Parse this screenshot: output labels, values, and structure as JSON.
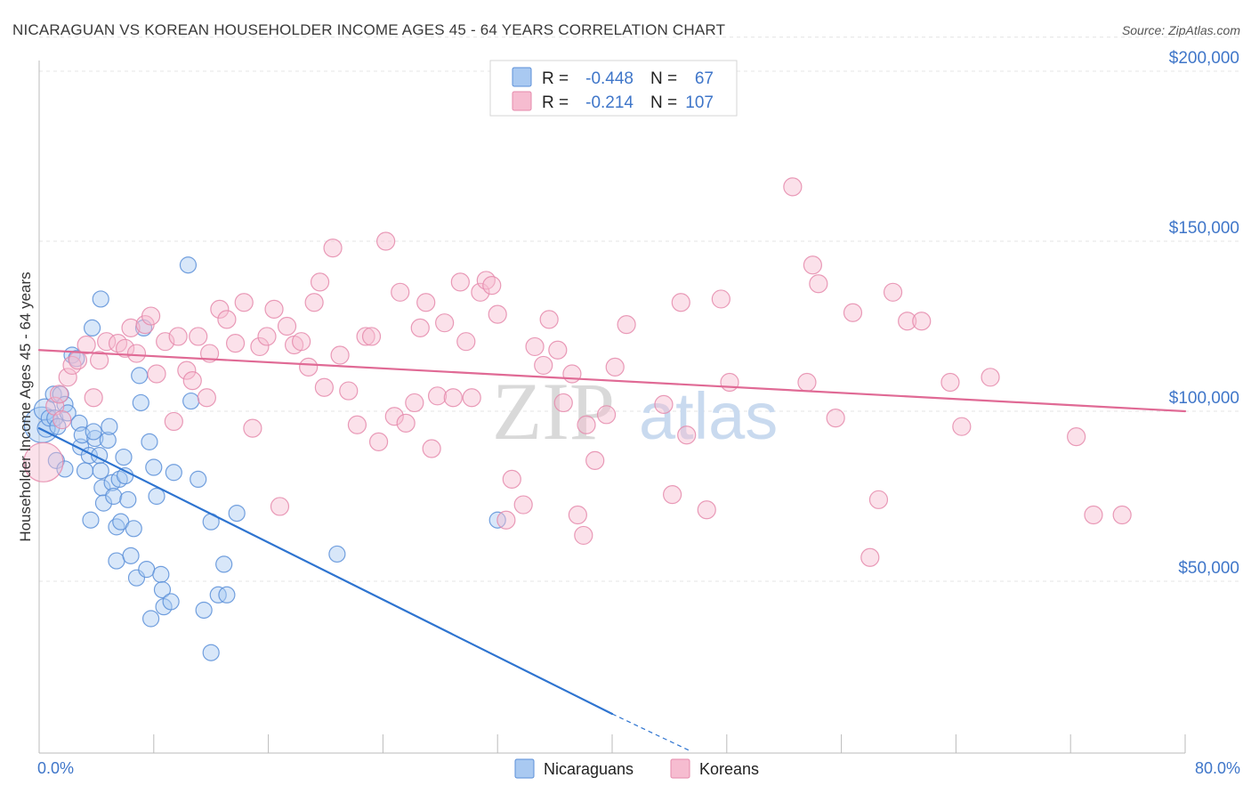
{
  "chart_data": {
    "type": "scatter",
    "title": "NICARAGUAN VS KOREAN HOUSEHOLDER INCOME AGES 45 - 64 YEARS CORRELATION CHART",
    "source": "Source: ZipAtlas.com",
    "xlabel": "",
    "ylabel": "Householder Income Ages 45 - 64 years",
    "xlim": [
      0,
      80
    ],
    "ylim": [
      0,
      210000
    ],
    "x_tick_labels": [
      "0.0%",
      "80.0%"
    ],
    "y_ticks": [
      50000,
      100000,
      150000,
      200000
    ],
    "y_tick_labels": [
      "$50,000",
      "$100,000",
      "$150,000",
      "$200,000"
    ],
    "grid": true,
    "watermark": {
      "zip": "ZIP",
      "atlas": "atlas"
    },
    "colors": {
      "Nicaraguans": {
        "fill": "#a9c9f1",
        "stroke": "#5b8fd8",
        "line": "#2e74d0"
      },
      "Koreans": {
        "fill": "#f6bcd0",
        "stroke": "#e58aab",
        "line": "#e06a95"
      }
    },
    "stats_legend": [
      {
        "series": "Nicaraguans",
        "r_label": "R =",
        "r_value": "-0.448",
        "n_label": "N =",
        "n_value": "67"
      },
      {
        "series": "Koreans",
        "r_label": "R =",
        "r_value": "-0.214",
        "n_label": "N =",
        "n_value": "107"
      }
    ],
    "series": [
      {
        "name": "Nicaraguans",
        "trend": {
          "x0": 0,
          "y0": 95000,
          "x1": 40,
          "y1": 11000,
          "dash_to_x": 45.5,
          "dash_to_y": 0
        },
        "points": [
          [
            0.2,
            96000,
            20
          ],
          [
            0.4,
            100500,
            12
          ],
          [
            0.5,
            95000,
            10
          ],
          [
            0.7,
            98000,
            9
          ],
          [
            1.0,
            105000,
            9
          ],
          [
            1.1,
            98000,
            9
          ],
          [
            1.3,
            95500,
            9
          ],
          [
            1.5,
            105000,
            9
          ],
          [
            1.8,
            102000,
            9
          ],
          [
            2.0,
            99500,
            9
          ],
          [
            1.2,
            85500,
            9
          ],
          [
            1.8,
            83000,
            9
          ],
          [
            2.3,
            116500,
            9
          ],
          [
            2.6,
            115500,
            9
          ],
          [
            2.8,
            96500,
            9
          ],
          [
            2.9,
            89500,
            9
          ],
          [
            3.0,
            93000,
            9
          ],
          [
            3.2,
            82500,
            9
          ],
          [
            3.5,
            87000,
            9
          ],
          [
            3.6,
            68000,
            9
          ],
          [
            3.7,
            124500,
            9
          ],
          [
            3.9,
            92000,
            9
          ],
          [
            4.2,
            87000,
            9
          ],
          [
            4.3,
            82500,
            9
          ],
          [
            4.4,
            77500,
            9
          ],
          [
            4.5,
            73000,
            9
          ],
          [
            4.3,
            133000,
            9
          ],
          [
            4.8,
            91500,
            9
          ],
          [
            4.9,
            95500,
            9
          ],
          [
            5.1,
            79000,
            9
          ],
          [
            5.2,
            75000,
            9
          ],
          [
            5.4,
            66000,
            9
          ],
          [
            5.4,
            56000,
            9
          ],
          [
            5.6,
            80000,
            9
          ],
          [
            5.7,
            67500,
            9
          ],
          [
            5.9,
            86500,
            9
          ],
          [
            6.0,
            81000,
            9
          ],
          [
            6.2,
            74000,
            9
          ],
          [
            6.4,
            57500,
            9
          ],
          [
            6.6,
            65500,
            9
          ],
          [
            6.8,
            51000,
            9
          ],
          [
            7.0,
            110500,
            9
          ],
          [
            7.1,
            102500,
            9
          ],
          [
            7.3,
            124500,
            9
          ],
          [
            7.5,
            53500,
            9
          ],
          [
            7.7,
            91000,
            9
          ],
          [
            7.8,
            39000,
            9
          ],
          [
            8.0,
            83500,
            9
          ],
          [
            8.2,
            75000,
            9
          ],
          [
            8.5,
            52000,
            9
          ],
          [
            8.6,
            47500,
            9
          ],
          [
            8.7,
            42500,
            9
          ],
          [
            9.2,
            44000,
            9
          ],
          [
            9.4,
            82000,
            9
          ],
          [
            10.4,
            143000,
            9
          ],
          [
            10.6,
            103000,
            9
          ],
          [
            11.1,
            80000,
            9
          ],
          [
            11.5,
            41500,
            9
          ],
          [
            12.0,
            67500,
            9
          ],
          [
            12.0,
            29000,
            9
          ],
          [
            12.5,
            46000,
            9
          ],
          [
            12.9,
            55000,
            9
          ],
          [
            13.1,
            46000,
            9
          ],
          [
            13.8,
            70000,
            9
          ],
          [
            20.8,
            58000,
            9
          ],
          [
            32.0,
            68000,
            9
          ],
          [
            3.8,
            94000,
            9
          ]
        ]
      },
      {
        "name": "Koreans",
        "trend": {
          "x0": 0,
          "y0": 118000,
          "x1": 80,
          "y1": 100000
        },
        "points": [
          [
            0.3,
            85000,
            22
          ],
          [
            1.1,
            101500,
            10
          ],
          [
            1.4,
            105000,
            10
          ],
          [
            1.6,
            97500,
            10
          ],
          [
            2.0,
            110000,
            10
          ],
          [
            2.3,
            113500,
            10
          ],
          [
            2.7,
            115000,
            10
          ],
          [
            3.3,
            119500,
            10
          ],
          [
            3.8,
            104000,
            10
          ],
          [
            4.2,
            115000,
            10
          ],
          [
            4.7,
            120500,
            10
          ],
          [
            5.5,
            120000,
            10
          ],
          [
            6.0,
            118500,
            10
          ],
          [
            6.4,
            124500,
            10
          ],
          [
            6.8,
            117000,
            10
          ],
          [
            7.4,
            125500,
            10
          ],
          [
            7.8,
            128000,
            10
          ],
          [
            8.2,
            111000,
            10
          ],
          [
            8.8,
            120500,
            10
          ],
          [
            9.4,
            97000,
            10
          ],
          [
            9.7,
            122000,
            10
          ],
          [
            10.3,
            112000,
            10
          ],
          [
            10.7,
            109000,
            10
          ],
          [
            11.1,
            122000,
            10
          ],
          [
            11.7,
            104000,
            10
          ],
          [
            11.9,
            117000,
            10
          ],
          [
            12.6,
            130000,
            10
          ],
          [
            13.1,
            127000,
            10
          ],
          [
            13.7,
            120000,
            10
          ],
          [
            14.3,
            132000,
            10
          ],
          [
            14.9,
            95000,
            10
          ],
          [
            15.4,
            119000,
            10
          ],
          [
            15.9,
            122000,
            10
          ],
          [
            16.4,
            130000,
            10
          ],
          [
            16.8,
            72000,
            10
          ],
          [
            17.3,
            125000,
            10
          ],
          [
            17.8,
            119500,
            10
          ],
          [
            18.3,
            120500,
            10
          ],
          [
            18.8,
            113000,
            10
          ],
          [
            19.2,
            132000,
            10
          ],
          [
            19.6,
            138000,
            10
          ],
          [
            19.9,
            107000,
            10
          ],
          [
            20.5,
            148000,
            10
          ],
          [
            21.0,
            116500,
            10
          ],
          [
            21.6,
            106000,
            10
          ],
          [
            22.2,
            96000,
            10
          ],
          [
            22.8,
            122000,
            10
          ],
          [
            23.2,
            122000,
            10
          ],
          [
            23.7,
            91000,
            10
          ],
          [
            24.2,
            150000,
            10
          ],
          [
            24.8,
            98500,
            10
          ],
          [
            25.2,
            135000,
            10
          ],
          [
            25.6,
            96500,
            10
          ],
          [
            26.2,
            102500,
            10
          ],
          [
            26.6,
            124500,
            10
          ],
          [
            27.0,
            132000,
            10
          ],
          [
            27.4,
            89000,
            10
          ],
          [
            27.8,
            104500,
            10
          ],
          [
            28.3,
            126000,
            10
          ],
          [
            28.9,
            104000,
            10
          ],
          [
            29.4,
            138000,
            10
          ],
          [
            29.8,
            120500,
            10
          ],
          [
            30.2,
            104000,
            10
          ],
          [
            30.8,
            135000,
            10
          ],
          [
            31.2,
            138500,
            10
          ],
          [
            31.6,
            137000,
            10
          ],
          [
            32.0,
            128500,
            10
          ],
          [
            32.6,
            68000,
            10
          ],
          [
            33.0,
            80000,
            10
          ],
          [
            33.8,
            72500,
            10
          ],
          [
            34.6,
            119000,
            10
          ],
          [
            35.2,
            113500,
            10
          ],
          [
            35.6,
            127000,
            10
          ],
          [
            36.2,
            118000,
            10
          ],
          [
            36.6,
            102500,
            10
          ],
          [
            37.2,
            111000,
            10
          ],
          [
            37.6,
            69500,
            10
          ],
          [
            38.0,
            63500,
            10
          ],
          [
            38.2,
            96000,
            10
          ],
          [
            38.8,
            85500,
            10
          ],
          [
            39.6,
            99000,
            10
          ],
          [
            40.2,
            113000,
            10
          ],
          [
            41.0,
            125500,
            10
          ],
          [
            43.6,
            102000,
            10
          ],
          [
            44.2,
            75500,
            10
          ],
          [
            44.8,
            132000,
            10
          ],
          [
            45.2,
            93000,
            10
          ],
          [
            46.6,
            71000,
            10
          ],
          [
            47.6,
            133000,
            10
          ],
          [
            48.2,
            108500,
            10
          ],
          [
            52.6,
            166000,
            10
          ],
          [
            53.6,
            108500,
            10
          ],
          [
            54.0,
            143000,
            10
          ],
          [
            54.4,
            137500,
            10
          ],
          [
            55.6,
            98000,
            10
          ],
          [
            56.8,
            129000,
            10
          ],
          [
            58.0,
            57000,
            10
          ],
          [
            58.6,
            74000,
            10
          ],
          [
            59.6,
            135000,
            10
          ],
          [
            60.6,
            126500,
            10
          ],
          [
            61.6,
            126500,
            10
          ],
          [
            63.6,
            108500,
            10
          ],
          [
            64.4,
            95500,
            10
          ],
          [
            66.4,
            110000,
            10
          ],
          [
            72.4,
            92500,
            10
          ],
          [
            73.6,
            69500,
            10
          ],
          [
            75.6,
            69500,
            10
          ]
        ]
      }
    ],
    "legend": [
      "Nicaraguans",
      "Koreans"
    ]
  }
}
